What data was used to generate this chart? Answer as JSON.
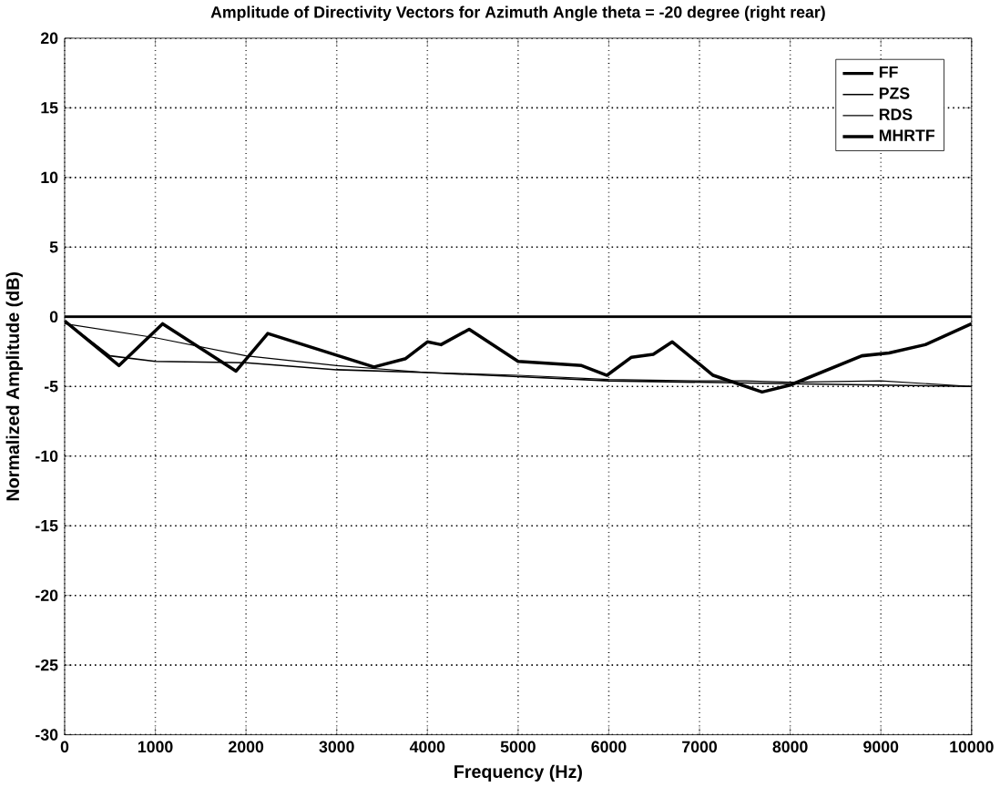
{
  "chart_data": {
    "type": "line",
    "title": "Amplitude of Directivity Vectors for Azimuth Angle theta = -20 degree (right rear)",
    "xlabel": "Frequency (Hz)",
    "ylabel": "Normalized Amplitude  (dB)",
    "series": [
      {
        "name": "FF",
        "color": "#000000",
        "x": [
          0,
          10000
        ],
        "values": [
          0,
          0
        ]
      },
      {
        "name": "PZS",
        "color": "#000000",
        "x": [
          0,
          500,
          1000,
          2000,
          3000,
          4000,
          5000,
          6000,
          7000,
          8000,
          9000,
          10000
        ],
        "values": [
          -0.3,
          -2.8,
          -3.2,
          -3.3,
          -3.8,
          -4.0,
          -4.3,
          -4.6,
          -4.7,
          -4.8,
          -4.9,
          -5.0
        ]
      },
      {
        "name": "RDS",
        "color": "#000000",
        "x": [
          0,
          1000,
          2000,
          3000,
          4000,
          5000,
          6000,
          7000,
          7500,
          8000,
          9000,
          10000
        ],
        "values": [
          -0.5,
          -1.5,
          -2.8,
          -3.5,
          -4.0,
          -4.2,
          -4.5,
          -4.6,
          -4.6,
          -4.7,
          -4.6,
          -5.0
        ]
      },
      {
        "name": "MHRTF",
        "color": "#000000",
        "x": [
          0,
          600,
          1080,
          1890,
          2240,
          3410,
          3760,
          4000,
          4150,
          4460,
          5000,
          5470,
          5700,
          5980,
          6250,
          6490,
          6700,
          7150,
          7690,
          8000,
          8790,
          9090,
          9490,
          10000
        ],
        "values": [
          -0.3,
          -3.5,
          -0.5,
          -3.9,
          -1.2,
          -3.6,
          -3.0,
          -1.8,
          -2.0,
          -0.9,
          -3.2,
          -3.4,
          -3.5,
          -4.2,
          -2.9,
          -2.7,
          -1.8,
          -4.2,
          -5.4,
          -4.9,
          -2.8,
          -2.6,
          -2.0,
          -0.5
        ]
      }
    ],
    "xlim": [
      0,
      10000
    ],
    "ylim": [
      -30,
      20
    ],
    "xticks": [
      0,
      1000,
      2000,
      3000,
      4000,
      5000,
      6000,
      7000,
      8000,
      9000,
      10000
    ],
    "yticks": [
      -30,
      -25,
      -20,
      -15,
      -10,
      -5,
      0,
      5,
      10,
      15,
      20
    ],
    "grid": true,
    "legend": "top right",
    "line_style": "solid",
    "marker": "none"
  }
}
